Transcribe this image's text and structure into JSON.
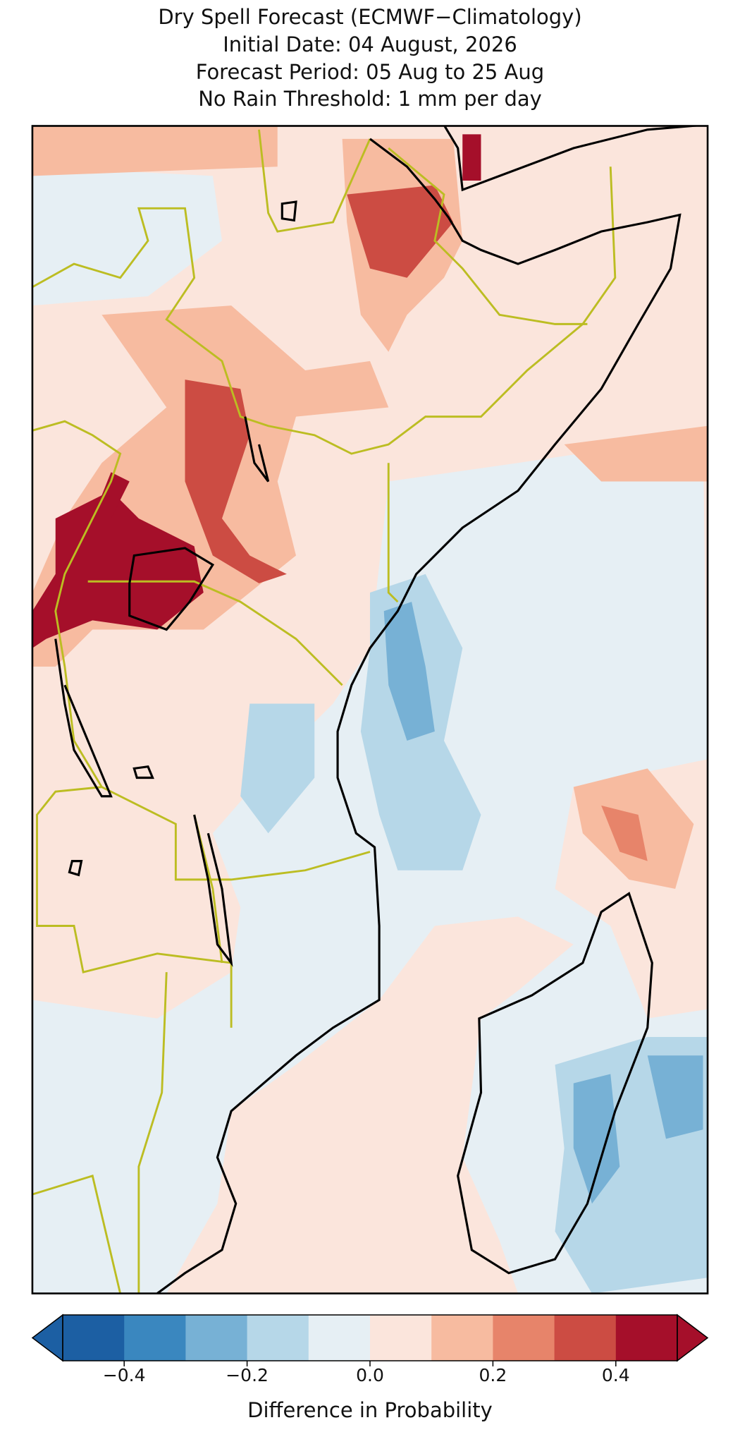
{
  "chart_data": {
    "type": "map",
    "title": [
      "Dry Spell Forecast (ECMWF−Climatology)",
      "Initial Date: 04 August, 2026",
      "Forecast Period: 05 Aug to 25 Aug",
      "No Rain Threshold: 1 mm per day"
    ],
    "colorbar": {
      "label": "Difference in Probability",
      "extend": "both",
      "bounds": [
        -0.5,
        -0.4,
        -0.3,
        -0.2,
        -0.1,
        0,
        0.1,
        0.2,
        0.3,
        0.4,
        0.5
      ],
      "colors": [
        "#1c5fa3",
        "#3a87bf",
        "#77b1d5",
        "#b6d7e8",
        "#e6eff4",
        "#fbe5dc",
        "#f7bba0",
        "#e7846a",
        "#cc4c43",
        "#a50f2a"
      ],
      "ticks": [
        {
          "value": -0.4,
          "label": "−0.4"
        },
        {
          "value": -0.2,
          "label": "−0.2"
        },
        {
          "value": 0,
          "label": "0.0"
        },
        0.2,
        0.4
      ]
    }
  }
}
